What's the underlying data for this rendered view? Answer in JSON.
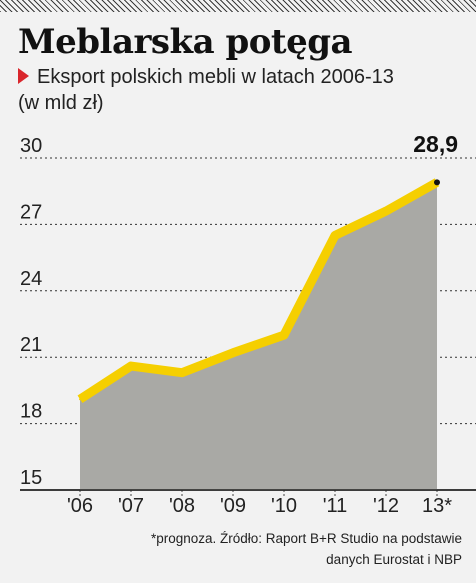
{
  "header": {
    "title": "Meblarska potęga",
    "subtitle": "Eksport polskich mebli w latach 2006-13",
    "unit": "(w mld zł)"
  },
  "chart_data": {
    "type": "area",
    "title": "Meblarska potęga",
    "subtitle": "Eksport polskich mebli w latach 2006-13",
    "ylabel": "(w mld zł)",
    "xlabel": "",
    "categories": [
      "'06",
      "'07",
      "'08",
      "'09",
      "'10",
      "'11",
      "'12",
      "13*"
    ],
    "values": [
      19.1,
      20.6,
      20.3,
      21.2,
      22.0,
      26.5,
      27.6,
      28.9
    ],
    "ylim": [
      15,
      30
    ],
    "yticks": [
      15,
      18,
      21,
      24,
      27,
      30
    ],
    "ytick_labels": [
      "15",
      "18",
      "21",
      "24",
      "27",
      "30"
    ],
    "last_value_label": "28,9",
    "grid": true,
    "line_color": "#f5cf00",
    "fill_color": "#a9a9a5",
    "grid_color": "#333333"
  },
  "footer": {
    "note_line1": "*prognoza. Źródło: Raport B+R Studio na podstawie",
    "note_line2": "danych Eurostat i NBP"
  }
}
